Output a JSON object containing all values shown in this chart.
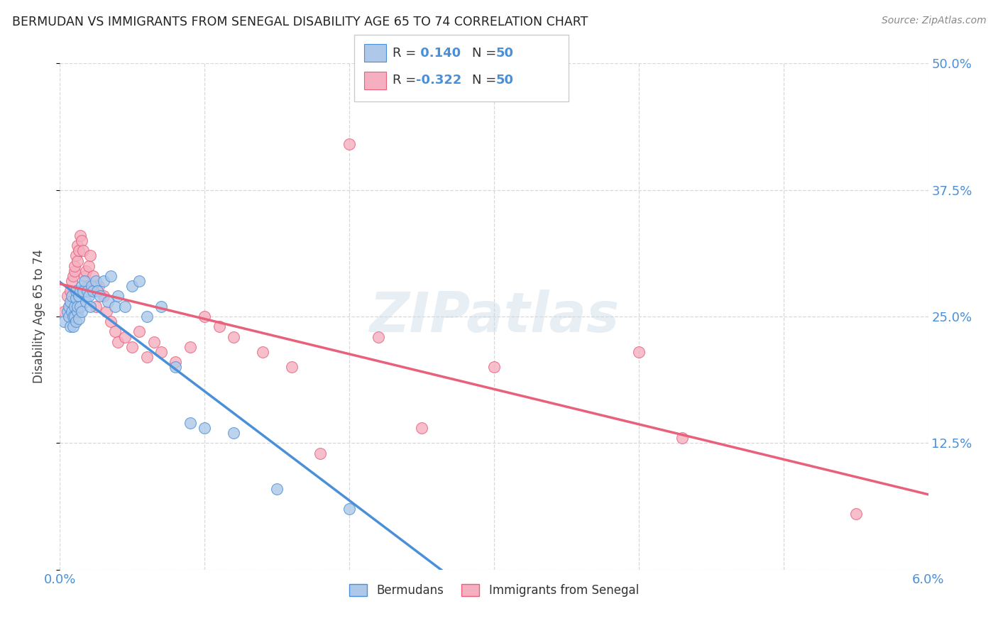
{
  "title": "BERMUDAN VS IMMIGRANTS FROM SENEGAL DISABILITY AGE 65 TO 74 CORRELATION CHART",
  "source": "Source: ZipAtlas.com",
  "ylabel": "Disability Age 65 to 74",
  "legend_labels": [
    "Bermudans",
    "Immigrants from Senegal"
  ],
  "r_bermuda": 0.14,
  "r_senegal": -0.322,
  "n_bermuda": 50,
  "n_senegal": 50,
  "color_bermuda": "#adc8e8",
  "color_senegal": "#f5afc0",
  "line_color_bermuda": "#4a90d9",
  "line_color_senegal": "#e8607a",
  "line_color_dashed": "#90b8d8",
  "xmin": 0.0,
  "xmax": 0.06,
  "ymin": 0.0,
  "ymax": 0.5,
  "x_ticks": [
    0.0,
    0.01,
    0.02,
    0.03,
    0.04,
    0.05,
    0.06
  ],
  "y_ticks": [
    0.0,
    0.125,
    0.25,
    0.375,
    0.5
  ],
  "y_tick_labels": [
    "",
    "12.5%",
    "25.0%",
    "37.5%",
    "50.0%"
  ],
  "background_color": "#ffffff",
  "grid_color": "#d8d8d8",
  "bermuda_x": [
    0.0003,
    0.0005,
    0.0006,
    0.0006,
    0.0007,
    0.0007,
    0.0008,
    0.0008,
    0.0009,
    0.0009,
    0.001,
    0.001,
    0.0011,
    0.0011,
    0.0011,
    0.0012,
    0.0012,
    0.0013,
    0.0013,
    0.0014,
    0.0014,
    0.0015,
    0.0015,
    0.0016,
    0.0017,
    0.0018,
    0.0019,
    0.002,
    0.0021,
    0.0022,
    0.0023,
    0.0025,
    0.0026,
    0.0028,
    0.003,
    0.0033,
    0.0035,
    0.0038,
    0.004,
    0.0045,
    0.005,
    0.0055,
    0.006,
    0.007,
    0.008,
    0.009,
    0.01,
    0.012,
    0.015,
    0.02
  ],
  "bermuda_y": [
    0.245,
    0.255,
    0.26,
    0.25,
    0.24,
    0.265,
    0.255,
    0.27,
    0.25,
    0.24,
    0.26,
    0.25,
    0.268,
    0.275,
    0.245,
    0.255,
    0.26,
    0.27,
    0.248,
    0.275,
    0.26,
    0.28,
    0.255,
    0.275,
    0.285,
    0.265,
    0.275,
    0.27,
    0.26,
    0.28,
    0.275,
    0.285,
    0.275,
    0.27,
    0.285,
    0.265,
    0.29,
    0.26,
    0.27,
    0.26,
    0.28,
    0.285,
    0.25,
    0.26,
    0.2,
    0.145,
    0.14,
    0.135,
    0.08,
    0.06
  ],
  "senegal_x": [
    0.0003,
    0.0005,
    0.0006,
    0.0007,
    0.0008,
    0.0009,
    0.001,
    0.001,
    0.0011,
    0.0012,
    0.0012,
    0.0013,
    0.0014,
    0.0015,
    0.0016,
    0.0017,
    0.0018,
    0.0019,
    0.002,
    0.0021,
    0.0022,
    0.0023,
    0.0025,
    0.0027,
    0.003,
    0.0032,
    0.0035,
    0.0038,
    0.004,
    0.0045,
    0.005,
    0.0055,
    0.006,
    0.0065,
    0.007,
    0.008,
    0.009,
    0.01,
    0.011,
    0.012,
    0.014,
    0.016,
    0.018,
    0.02,
    0.022,
    0.025,
    0.03,
    0.04,
    0.043,
    0.055
  ],
  "senegal_y": [
    0.255,
    0.27,
    0.26,
    0.275,
    0.285,
    0.29,
    0.295,
    0.3,
    0.31,
    0.305,
    0.32,
    0.315,
    0.33,
    0.325,
    0.315,
    0.29,
    0.295,
    0.28,
    0.3,
    0.31,
    0.275,
    0.29,
    0.26,
    0.28,
    0.27,
    0.255,
    0.245,
    0.235,
    0.225,
    0.23,
    0.22,
    0.235,
    0.21,
    0.225,
    0.215,
    0.205,
    0.22,
    0.25,
    0.24,
    0.23,
    0.215,
    0.2,
    0.115,
    0.42,
    0.23,
    0.14,
    0.2,
    0.215,
    0.13,
    0.055
  ]
}
